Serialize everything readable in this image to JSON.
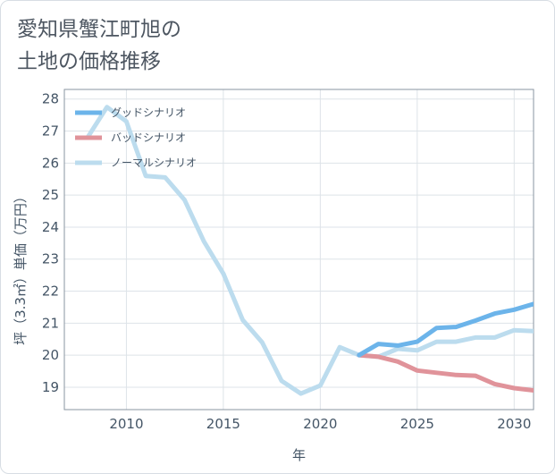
{
  "title_lines": [
    "愛知県蟹江町旭の",
    "土地の価格推移"
  ],
  "chart_data": {
    "type": "line",
    "xlabel": "年",
    "ylabel": "坪（3.3㎡）単価（万円）",
    "xlim": [
      2006.8,
      2031
    ],
    "ylim": [
      18.3,
      28.3
    ],
    "x_ticks": [
      2010,
      2015,
      2020,
      2025,
      2030
    ],
    "y_ticks": [
      19,
      20,
      21,
      22,
      23,
      24,
      25,
      26,
      27,
      28
    ],
    "grid": true,
    "legend_position": "top-left",
    "series": [
      {
        "name": "グッドシナリオ",
        "color": "#6cb4ea",
        "x": [
          2022,
          2023,
          2024,
          2025,
          2026,
          2027,
          2028,
          2029,
          2030,
          2031
        ],
        "y": [
          20.0,
          20.35,
          20.3,
          20.42,
          20.85,
          20.88,
          21.08,
          21.3,
          21.42,
          21.6
        ]
      },
      {
        "name": "バッドシナリオ",
        "color": "#e0939a",
        "x": [
          2022,
          2023,
          2024,
          2025,
          2026,
          2027,
          2028,
          2029,
          2030,
          2031
        ],
        "y": [
          20.0,
          19.95,
          19.8,
          19.52,
          19.45,
          19.38,
          19.36,
          19.1,
          18.97,
          18.9
        ]
      },
      {
        "name": "ノーマルシナリオ",
        "color": "#bcdcee",
        "x": [
          2008,
          2009,
          2010,
          2011,
          2012,
          2013,
          2014,
          2015,
          2016,
          2017,
          2018,
          2019,
          2020,
          2021,
          2022,
          2023,
          2024,
          2025,
          2026,
          2027,
          2028,
          2029,
          2030,
          2031
        ],
        "y": [
          26.8,
          27.75,
          27.3,
          25.6,
          25.55,
          24.85,
          23.55,
          22.55,
          21.1,
          20.4,
          19.2,
          18.8,
          19.05,
          20.25,
          20.0,
          19.95,
          20.2,
          20.15,
          20.42,
          20.42,
          20.55,
          20.55,
          20.78,
          20.75
        ]
      }
    ]
  }
}
